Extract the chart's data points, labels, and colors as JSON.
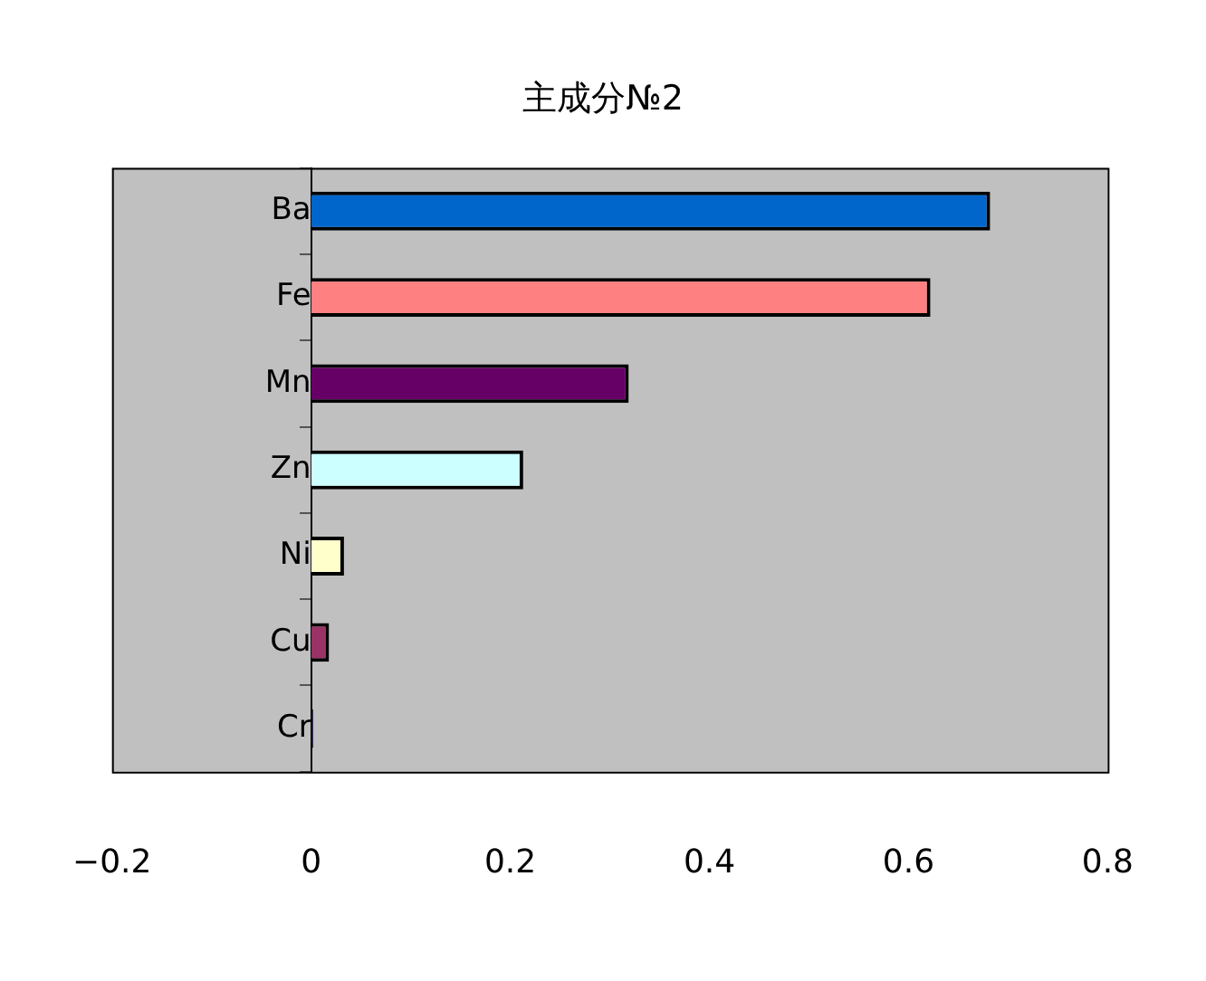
{
  "chart_data": {
    "type": "bar",
    "orientation": "horizontal",
    "title": "主成分№2",
    "categories": [
      "Ba",
      "Fe",
      "Mn",
      "Zn",
      "Ni",
      "Cu",
      "Cr"
    ],
    "values": [
      0.682,
      0.622,
      0.319,
      0.213,
      0.033,
      0.018,
      0.002
    ],
    "colors": [
      "#0066cc",
      "#ff8080",
      "#660066",
      "#ccffff",
      "#ffffcc",
      "#993366",
      "#000080"
    ],
    "xlim": [
      -0.2,
      0.8
    ],
    "xticks": [
      -0.2,
      0,
      0.2,
      0.4,
      0.6,
      0.8
    ],
    "grid": false,
    "legend": false
  }
}
